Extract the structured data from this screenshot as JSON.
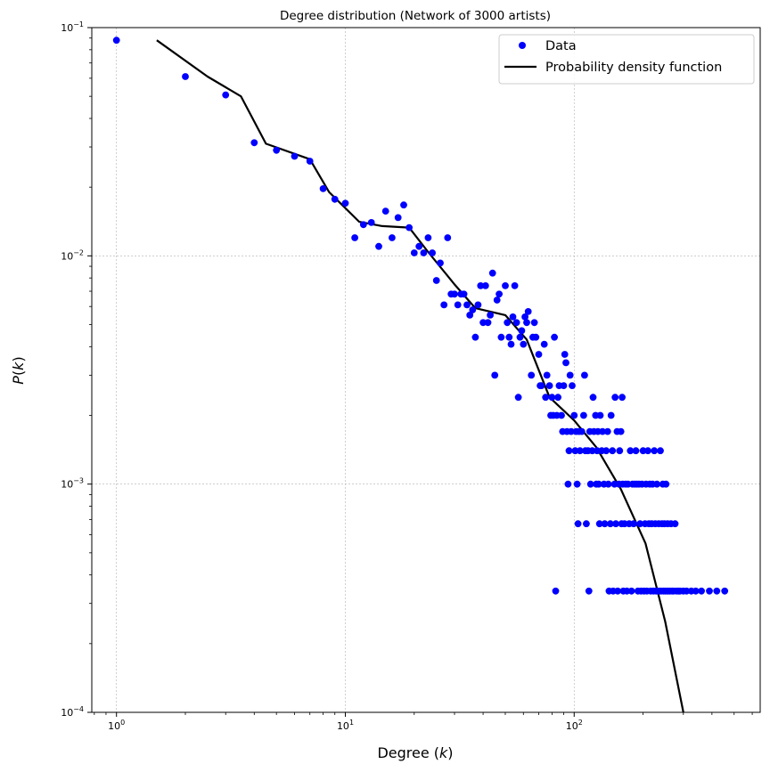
{
  "chart_data": {
    "type": "scatter",
    "title": "Degree distribution (Network of 3000 artists)",
    "xlabel": "Degree (k)",
    "ylabel": "P(k)",
    "xscale": "log",
    "yscale": "log",
    "xlim": [
      0.78,
      650
    ],
    "ylim": [
      0.0001,
      0.1
    ],
    "grid": true,
    "legend_position": "top-right",
    "x_ticks": [
      {
        "value": 1,
        "base": "10",
        "exp": "0"
      },
      {
        "value": 10,
        "base": "10",
        "exp": "1"
      },
      {
        "value": 100,
        "base": "10",
        "exp": "2"
      }
    ],
    "y_ticks": [
      {
        "value": 0.0001,
        "base": "10",
        "exp": "−4"
      },
      {
        "value": 0.001,
        "base": "10",
        "exp": "−3"
      },
      {
        "value": 0.01,
        "base": "10",
        "exp": "−2"
      },
      {
        "value": 0.1,
        "base": "10",
        "exp": "−1"
      }
    ],
    "series": [
      {
        "name": "Data",
        "kind": "markers",
        "color": "#0000ff",
        "points": [
          [
            1,
            0.088
          ],
          [
            2,
            0.061
          ],
          [
            3,
            0.0507
          ],
          [
            4,
            0.0313
          ],
          [
            5,
            0.029
          ],
          [
            6,
            0.0273
          ],
          [
            7,
            0.026
          ],
          [
            8,
            0.0197
          ],
          [
            9,
            0.0177
          ],
          [
            10,
            0.017
          ],
          [
            11,
            0.012
          ],
          [
            12,
            0.0137
          ],
          [
            13,
            0.014
          ],
          [
            14,
            0.011
          ],
          [
            15,
            0.0157
          ],
          [
            16,
            0.012
          ],
          [
            17,
            0.0147
          ],
          [
            18,
            0.0167
          ],
          [
            19,
            0.0133
          ],
          [
            20,
            0.0103
          ],
          [
            21,
            0.011
          ],
          [
            22,
            0.0103
          ],
          [
            23,
            0.012
          ],
          [
            24,
            0.0103
          ],
          [
            25,
            0.0078
          ],
          [
            26,
            0.0093
          ],
          [
            27,
            0.0061
          ],
          [
            28,
            0.012
          ],
          [
            29,
            0.0068
          ],
          [
            30,
            0.0068
          ],
          [
            31,
            0.0061
          ],
          [
            32,
            0.0068
          ],
          [
            33,
            0.0068
          ],
          [
            34,
            0.0061
          ],
          [
            35,
            0.0055
          ],
          [
            36,
            0.0058
          ],
          [
            37,
            0.0044
          ],
          [
            38,
            0.0061
          ],
          [
            39,
            0.0074
          ],
          [
            40,
            0.0051
          ],
          [
            41,
            0.0074
          ],
          [
            42,
            0.0051
          ],
          [
            43,
            0.0055
          ],
          [
            44,
            0.0084
          ],
          [
            45,
            0.003
          ],
          [
            46,
            0.0064
          ],
          [
            47,
            0.0068
          ],
          [
            48,
            0.0044
          ],
          [
            50,
            0.0074
          ],
          [
            51,
            0.0051
          ],
          [
            52,
            0.0044
          ],
          [
            53,
            0.0041
          ],
          [
            54,
            0.0054
          ],
          [
            55,
            0.0074
          ],
          [
            56,
            0.0051
          ],
          [
            57,
            0.0024
          ],
          [
            58,
            0.0044
          ],
          [
            59,
            0.0047
          ],
          [
            60,
            0.0041
          ],
          [
            61,
            0.0054
          ],
          [
            62,
            0.0051
          ],
          [
            63,
            0.0057
          ],
          [
            65,
            0.003
          ],
          [
            66,
            0.0044
          ],
          [
            67,
            0.0051
          ],
          [
            68,
            0.0044
          ],
          [
            70,
            0.0037
          ],
          [
            71,
            0.0027
          ],
          [
            72,
            0.0027
          ],
          [
            74,
            0.0041
          ],
          [
            75,
            0.0024
          ],
          [
            76,
            0.003
          ],
          [
            78,
            0.0027
          ],
          [
            79,
            0.002
          ],
          [
            80,
            0.0024
          ],
          [
            81,
            0.002
          ],
          [
            82,
            0.0044
          ],
          [
            83,
            0.00034
          ],
          [
            84,
            0.002
          ],
          [
            85,
            0.0024
          ],
          [
            86,
            0.0027
          ],
          [
            88,
            0.002
          ],
          [
            89,
            0.0017
          ],
          [
            90,
            0.0027
          ],
          [
            91,
            0.0037
          ],
          [
            92,
            0.0034
          ],
          [
            93,
            0.0017
          ],
          [
            94,
            0.001
          ],
          [
            95,
            0.0014
          ],
          [
            96,
            0.003
          ],
          [
            97,
            0.0017
          ],
          [
            98,
            0.0027
          ],
          [
            100,
            0.002
          ],
          [
            101,
            0.0014
          ],
          [
            102,
            0.0017
          ],
          [
            103,
            0.001
          ],
          [
            104,
            0.00067
          ],
          [
            105,
            0.0017
          ],
          [
            106,
            0.0014
          ],
          [
            108,
            0.0017
          ],
          [
            110,
            0.002
          ],
          [
            111,
            0.003
          ],
          [
            112,
            0.0014
          ],
          [
            113,
            0.00067
          ],
          [
            115,
            0.0014
          ],
          [
            116,
            0.00034
          ],
          [
            117,
            0.0017
          ],
          [
            118,
            0.001
          ],
          [
            120,
            0.0014
          ],
          [
            121,
            0.0024
          ],
          [
            122,
            0.0017
          ],
          [
            124,
            0.002
          ],
          [
            125,
            0.001
          ],
          [
            126,
            0.0014
          ],
          [
            127,
            0.0017
          ],
          [
            128,
            0.001
          ],
          [
            129,
            0.00067
          ],
          [
            130,
            0.002
          ],
          [
            132,
            0.0014
          ],
          [
            133,
            0.0017
          ],
          [
            135,
            0.001
          ],
          [
            136,
            0.00067
          ],
          [
            138,
            0.0014
          ],
          [
            140,
            0.0017
          ],
          [
            141,
            0.001
          ],
          [
            142,
            0.00034
          ],
          [
            144,
            0.00067
          ],
          [
            145,
            0.002
          ],
          [
            147,
            0.0014
          ],
          [
            148,
            0.00034
          ],
          [
            150,
            0.001
          ],
          [
            151,
            0.0024
          ],
          [
            152,
            0.00067
          ],
          [
            154,
            0.0017
          ],
          [
            155,
            0.00034
          ],
          [
            157,
            0.001
          ],
          [
            158,
            0.0014
          ],
          [
            160,
            0.0017
          ],
          [
            161,
            0.00067
          ],
          [
            162,
            0.0024
          ],
          [
            163,
            0.001
          ],
          [
            164,
            0.00034
          ],
          [
            166,
            0.00067
          ],
          [
            168,
            0.001
          ],
          [
            170,
            0.00034
          ],
          [
            172,
            0.001
          ],
          [
            174,
            0.00067
          ],
          [
            176,
            0.0014
          ],
          [
            178,
            0.00034
          ],
          [
            180,
            0.001
          ],
          [
            182,
            0.00067
          ],
          [
            184,
            0.001
          ],
          [
            186,
            0.0014
          ],
          [
            188,
            0.001
          ],
          [
            190,
            0.00034
          ],
          [
            192,
            0.001
          ],
          [
            194,
            0.00067
          ],
          [
            196,
            0.00034
          ],
          [
            198,
            0.001
          ],
          [
            200,
            0.0014
          ],
          [
            202,
            0.00034
          ],
          [
            204,
            0.00067
          ],
          [
            206,
            0.001
          ],
          [
            208,
            0.00034
          ],
          [
            210,
            0.0014
          ],
          [
            212,
            0.00067
          ],
          [
            214,
            0.001
          ],
          [
            216,
            0.00034
          ],
          [
            218,
            0.00067
          ],
          [
            220,
            0.001
          ],
          [
            222,
            0.00034
          ],
          [
            224,
            0.0014
          ],
          [
            226,
            0.00067
          ],
          [
            228,
            0.00034
          ],
          [
            230,
            0.001
          ],
          [
            232,
            0.00034
          ],
          [
            234,
            0.00067
          ],
          [
            236,
            0.00034
          ],
          [
            238,
            0.0014
          ],
          [
            240,
            0.00034
          ],
          [
            242,
            0.00067
          ],
          [
            244,
            0.001
          ],
          [
            246,
            0.00034
          ],
          [
            248,
            0.00067
          ],
          [
            250,
            0.00034
          ],
          [
            252,
            0.001
          ],
          [
            254,
            0.00034
          ],
          [
            256,
            0.00067
          ],
          [
            258,
            0.00034
          ],
          [
            262,
            0.00034
          ],
          [
            265,
            0.00067
          ],
          [
            268,
            0.00034
          ],
          [
            272,
            0.00034
          ],
          [
            276,
            0.00067
          ],
          [
            280,
            0.00034
          ],
          [
            285,
            0.00034
          ],
          [
            290,
            0.00034
          ],
          [
            300,
            0.00034
          ],
          [
            310,
            0.00034
          ],
          [
            325,
            0.00034
          ],
          [
            340,
            0.00034
          ],
          [
            360,
            0.00034
          ],
          [
            390,
            0.00034
          ],
          [
            420,
            0.00034
          ],
          [
            455,
            0.00034
          ]
        ]
      },
      {
        "name": "Probability density function",
        "kind": "line",
        "color": "#000000",
        "points": [
          [
            1.5,
            0.088
          ],
          [
            2.5,
            0.061
          ],
          [
            3.5,
            0.05
          ],
          [
            4.5,
            0.031
          ],
          [
            7.0,
            0.0265
          ],
          [
            8.5,
            0.019
          ],
          [
            11.5,
            0.0141
          ],
          [
            14.5,
            0.0135
          ],
          [
            19.0,
            0.0133
          ],
          [
            23.0,
            0.0104
          ],
          [
            30.0,
            0.0075
          ],
          [
            37.0,
            0.0059
          ],
          [
            50.0,
            0.0055
          ],
          [
            62.0,
            0.0043
          ],
          [
            78.0,
            0.0024
          ],
          [
            100.0,
            0.0019
          ],
          [
            125.0,
            0.00145
          ],
          [
            160.0,
            0.00095
          ],
          [
            205.0,
            0.00055
          ],
          [
            250.0,
            0.00025
          ],
          [
            300.0,
            0.0001
          ]
        ]
      }
    ]
  }
}
